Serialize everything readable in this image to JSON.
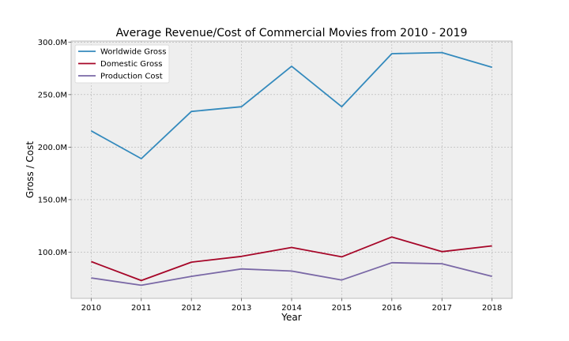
{
  "chart_data": {
    "type": "line",
    "title": "Average Revenue/Cost of Commercial Movies from 2010 - 2019",
    "xlabel": "Year",
    "ylabel": "Gross / Cost",
    "x": [
      2010,
      2011,
      2012,
      2013,
      2014,
      2015,
      2016,
      2017,
      2018
    ],
    "x_tick_labels": [
      "2010",
      "2011",
      "2012",
      "2013",
      "2014",
      "2015",
      "2016",
      "2017",
      "2018"
    ],
    "xlim": [
      2009.6,
      2018.4
    ],
    "ylim": [
      56000000,
      301000000
    ],
    "y_ticks": [
      100000000,
      150000000,
      200000000,
      250000000,
      300000000
    ],
    "y_tick_labels": [
      "100.0M",
      "150.0M",
      "200.0M",
      "250.0M",
      "300.0M"
    ],
    "grid": true,
    "legend_position": "top-left",
    "series": [
      {
        "name": "Worldwide Gross",
        "color": "#348abd",
        "values": [
          215500000,
          189000000,
          234000000,
          238500000,
          277000000,
          238500000,
          289000000,
          290000000,
          276000000
        ]
      },
      {
        "name": "Domestic Gross",
        "color": "#a60628",
        "values": [
          91000000,
          73000000,
          90500000,
          96000000,
          104500000,
          95500000,
          114500000,
          100500000,
          106000000
        ]
      },
      {
        "name": "Production Cost",
        "color": "#7a68a6",
        "values": [
          75500000,
          68500000,
          77000000,
          84000000,
          82000000,
          73500000,
          90000000,
          89000000,
          77000000
        ]
      }
    ]
  }
}
